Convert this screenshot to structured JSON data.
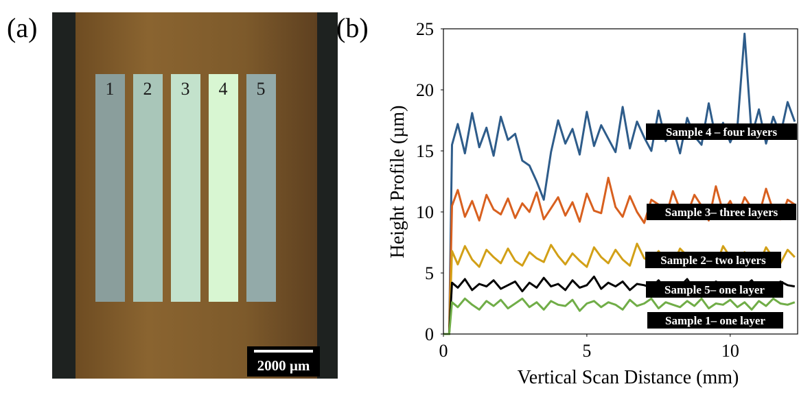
{
  "panel_a": {
    "label": "(a)",
    "strips": [
      "1",
      "2",
      "3",
      "4",
      "5"
    ],
    "scale_bar": "2000 µm"
  },
  "chart_data": {
    "type": "line",
    "panel_label": "(b)",
    "x_label": "Vertical Scan Distance (mm)",
    "y_label": "Height Profile (µm)",
    "x": [
      0,
      0.2,
      0.3,
      0.5,
      0.75,
      1,
      1.25,
      1.5,
      1.75,
      2,
      2.25,
      2.5,
      2.75,
      3,
      3.25,
      3.5,
      3.75,
      4,
      4.25,
      4.5,
      4.75,
      5,
      5.25,
      5.5,
      5.75,
      6,
      6.25,
      6.5,
      6.75,
      7,
      7.25,
      7.5,
      7.75,
      8,
      8.25,
      8.5,
      8.75,
      9,
      9.25,
      9.5,
      9.75,
      10,
      10.25,
      10.5,
      10.75,
      11,
      11.25,
      11.5,
      11.75,
      12,
      12.25
    ],
    "series": [
      {
        "name": "Sample 4 – four layers",
        "color": "#2e5c8a",
        "values": [
          0,
          0,
          15.5,
          17.2,
          14.8,
          18.1,
          15.3,
          16.9,
          14.6,
          17.8,
          15.9,
          16.4,
          14.2,
          13.8,
          12.5,
          11.0,
          14.9,
          17.5,
          15.6,
          16.8,
          14.7,
          18.2,
          15.4,
          17.1,
          16.0,
          14.9,
          18.6,
          15.2,
          17.4,
          16.1,
          15.0,
          18.3,
          15.8,
          16.9,
          14.8,
          17.7,
          16.2,
          15.5,
          18.9,
          16.0,
          17.3,
          15.7,
          17.0,
          24.6,
          16.2,
          18.4,
          15.6,
          17.8,
          16.3,
          19.0,
          17.4
        ]
      },
      {
        "name": "Sample 3– three layers",
        "color": "#d8601f",
        "values": [
          0,
          0,
          10.5,
          11.8,
          9.6,
          10.9,
          9.3,
          11.4,
          10.2,
          9.8,
          11.1,
          9.5,
          10.7,
          10.0,
          11.6,
          9.4,
          10.3,
          11.2,
          9.7,
          10.8,
          9.2,
          11.5,
          10.1,
          9.9,
          12.8,
          10.4,
          9.6,
          11.3,
          10.0,
          9.1,
          11.0,
          10.6,
          9.5,
          11.7,
          10.2,
          9.8,
          11.4,
          10.5,
          9.3,
          12.1,
          10.0,
          10.9,
          9.6,
          11.2,
          10.3,
          9.7,
          11.9,
          10.1,
          9.4,
          11.0,
          10.6
        ]
      },
      {
        "name": "Sample 2– two layers",
        "color": "#d2a017",
        "values": [
          0,
          0,
          6.8,
          5.7,
          7.2,
          6.1,
          5.5,
          6.9,
          6.3,
          5.8,
          7.0,
          6.0,
          5.6,
          6.7,
          6.2,
          5.9,
          7.3,
          6.4,
          5.7,
          6.6,
          6.0,
          5.5,
          7.1,
          6.3,
          5.8,
          6.9,
          6.1,
          5.6,
          7.4,
          6.2,
          5.9,
          6.8,
          6.0,
          5.7,
          7.0,
          6.4,
          5.8,
          6.6,
          6.1,
          5.6,
          7.2,
          6.3,
          5.9,
          6.7,
          6.0,
          5.7,
          7.1,
          6.2,
          5.8,
          6.9,
          6.3
        ]
      },
      {
        "name": "Sample 5– one layer",
        "color": "#000000",
        "values": [
          0,
          0,
          4.2,
          3.8,
          4.5,
          3.6,
          4.1,
          3.9,
          4.4,
          3.7,
          4.0,
          4.3,
          3.5,
          4.2,
          3.8,
          4.6,
          3.9,
          4.1,
          3.6,
          4.4,
          3.8,
          4.0,
          4.7,
          3.7,
          4.2,
          3.9,
          4.3,
          3.6,
          4.1,
          4.0,
          3.8,
          4.4,
          3.7,
          4.2,
          3.9,
          4.5,
          3.6,
          4.1,
          3.8,
          4.3,
          4.0,
          3.7,
          4.2,
          3.9,
          4.4,
          3.6,
          4.1,
          3.8,
          4.3,
          4.0,
          3.9
        ]
      },
      {
        "name": "Sample 1– one layer",
        "color": "#70ad47",
        "values": [
          0,
          0,
          2.6,
          2.2,
          2.9,
          2.4,
          2.0,
          2.7,
          2.3,
          2.8,
          2.1,
          2.5,
          2.9,
          2.2,
          2.6,
          2.0,
          2.7,
          2.4,
          2.3,
          2.8,
          1.9,
          2.5,
          2.7,
          2.2,
          2.6,
          2.4,
          2.0,
          2.8,
          2.3,
          2.5,
          2.9,
          2.1,
          2.6,
          2.4,
          2.2,
          2.7,
          2.3,
          2.9,
          2.1,
          2.5,
          2.4,
          2.8,
          2.2,
          2.6,
          2.0,
          2.7,
          2.3,
          2.9,
          2.5,
          2.4,
          2.6
        ]
      }
    ],
    "xlim": [
      0,
      12.35
    ],
    "ylim": [
      0,
      25
    ],
    "xticks": [
      0,
      5,
      10
    ],
    "yticks": [
      0,
      5,
      10,
      15,
      20,
      25
    ]
  }
}
